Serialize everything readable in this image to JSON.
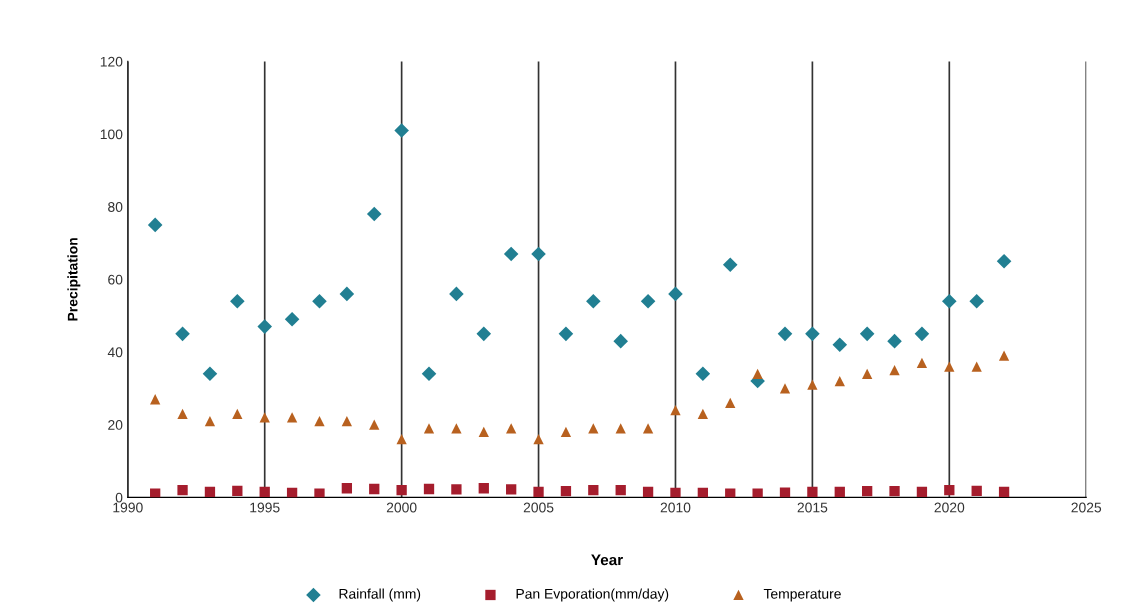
{
  "chart_data": {
    "type": "scatter",
    "xlabel": "Year",
    "ylabel": "Precipitation",
    "x": [
      1991,
      1992,
      1993,
      1994,
      1995,
      1996,
      1997,
      1998,
      1999,
      2000,
      2001,
      2002,
      2003,
      2004,
      2005,
      2006,
      2007,
      2008,
      2009,
      2010,
      2011,
      2012,
      2013,
      2014,
      2015,
      2016,
      2017,
      2018,
      2019,
      2020,
      2021,
      2022
    ],
    "series": [
      {
        "name": "Rainfall (mm)",
        "color": "#217f92",
        "marker": "diamond",
        "values": [
          75,
          45,
          34,
          54,
          47,
          49,
          54,
          56,
          78,
          101,
          34,
          56,
          45,
          67,
          67,
          45,
          54,
          43,
          54,
          56,
          34,
          64,
          32,
          45,
          45,
          42,
          45,
          43,
          45,
          54,
          54,
          65
        ]
      },
      {
        "name": "Pan Evporation(mm/day)",
        "color": "#a51d2d",
        "marker": "square",
        "values": [
          1,
          2,
          1.5,
          1.8,
          1.5,
          1.2,
          1,
          2.5,
          2.3,
          2,
          2.3,
          2.2,
          2.5,
          2.2,
          1.5,
          1.7,
          2,
          2,
          1.5,
          1.2,
          1.2,
          1,
          1,
          1.3,
          1.5,
          1.5,
          1.7,
          1.7,
          1.5,
          2,
          1.8,
          1.5
        ]
      },
      {
        "name": "Temperature",
        "color": "#b8611f",
        "marker": "triangle",
        "values": [
          27,
          23,
          21,
          23,
          22,
          22,
          21,
          21,
          20,
          16,
          19,
          19,
          18,
          19,
          16,
          18,
          19,
          19,
          19,
          24,
          23,
          26,
          34,
          30,
          31,
          32,
          34,
          35,
          37,
          36,
          36,
          39
        ]
      }
    ],
    "xlim": [
      1990,
      2025
    ],
    "xticks": [
      1990,
      1995,
      2000,
      2005,
      2010,
      2015,
      2020,
      2025
    ],
    "ylim": [
      0,
      120
    ],
    "yticks": [
      0,
      20,
      40,
      60,
      80,
      100,
      120
    ],
    "grid": "x",
    "legend": "bottom"
  }
}
